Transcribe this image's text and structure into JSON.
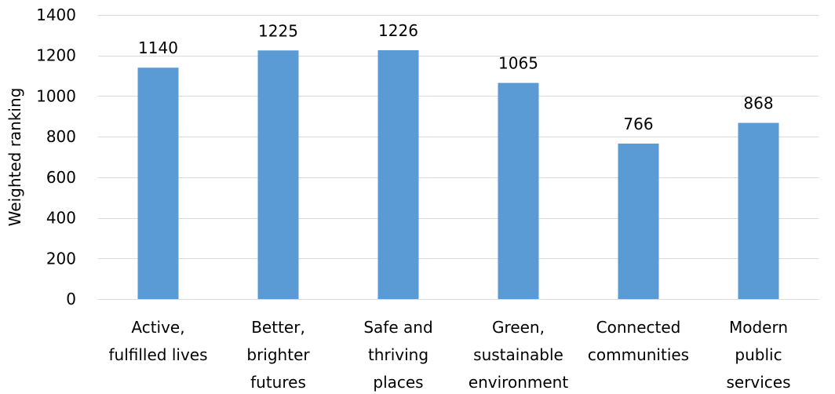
{
  "chart_data": {
    "type": "bar",
    "title": "",
    "xlabel": "",
    "ylabel": "Weighted ranking",
    "ylim": [
      0,
      1400
    ],
    "yticks": [
      0,
      200,
      400,
      600,
      800,
      1000,
      1200,
      1400
    ],
    "grid": true,
    "legend": "none",
    "bar_color": "#5B9BD5",
    "gridline_color": "#D9D9D9",
    "categories": [
      [
        "Active,",
        "fulfilled lives"
      ],
      [
        "Better,",
        "brighter",
        "futures"
      ],
      [
        "Safe and",
        "thriving",
        "places"
      ],
      [
        "Green,",
        "sustainable",
        "environment"
      ],
      [
        "Connected",
        "communities"
      ],
      [
        "Modern",
        "public",
        "services"
      ]
    ],
    "values": [
      1140,
      1225,
      1226,
      1065,
      766,
      868
    ],
    "data_labels": [
      "1140",
      "1225",
      "1226",
      "1065",
      "766",
      "868"
    ]
  }
}
